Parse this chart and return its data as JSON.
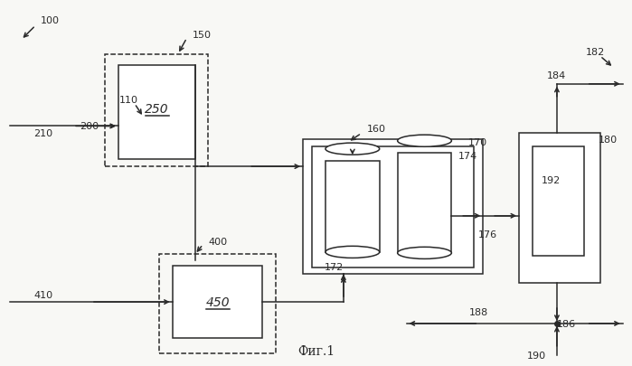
{
  "bg_color": "#f8f8f5",
  "line_color": "#2a2a2a",
  "title": "Фиг.1",
  "fs": 8.0
}
